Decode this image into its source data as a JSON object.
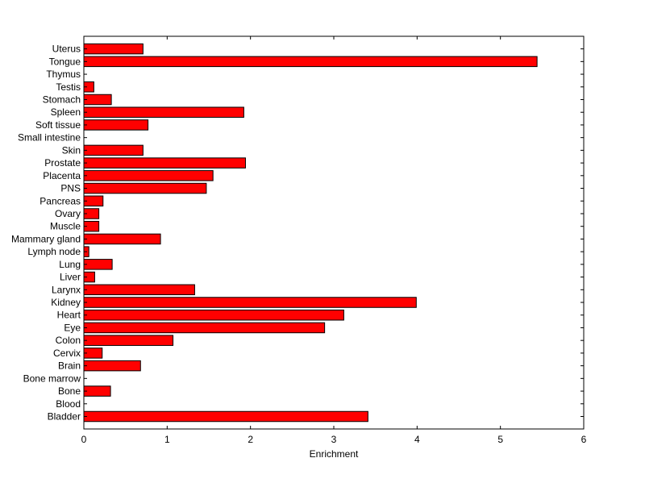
{
  "chart_data": {
    "type": "bar",
    "orientation": "horizontal",
    "title": "",
    "xlabel": "Enrichment",
    "ylabel": "",
    "xlim": [
      0,
      6
    ],
    "xticks": [
      "0",
      "1",
      "2",
      "3",
      "4",
      "5",
      "6"
    ],
    "grid": false,
    "bar_color": "#ff0000",
    "categories": [
      "Bladder",
      "Blood",
      "Bone",
      "Bone marrow",
      "Brain",
      "Cervix",
      "Colon",
      "Eye",
      "Heart",
      "Kidney",
      "Larynx",
      "Liver",
      "Lung",
      "Lymph node",
      "Mammary gland",
      "Muscle",
      "Ovary",
      "Pancreas",
      "PNS",
      "Placenta",
      "Prostate",
      "Skin",
      "Small intestine",
      "Soft tissue",
      "Spleen",
      "Stomach",
      "Testis",
      "Thymus",
      "Tongue",
      "Uterus"
    ],
    "values": [
      3.41,
      0,
      0.32,
      0,
      0.68,
      0.22,
      1.07,
      2.89,
      3.12,
      3.99,
      1.33,
      0.13,
      0.34,
      0.06,
      0.92,
      0.18,
      0.18,
      0.23,
      1.47,
      1.55,
      1.94,
      0.71,
      0,
      0.77,
      1.92,
      0.33,
      0.12,
      0,
      5.44,
      0.71
    ]
  }
}
